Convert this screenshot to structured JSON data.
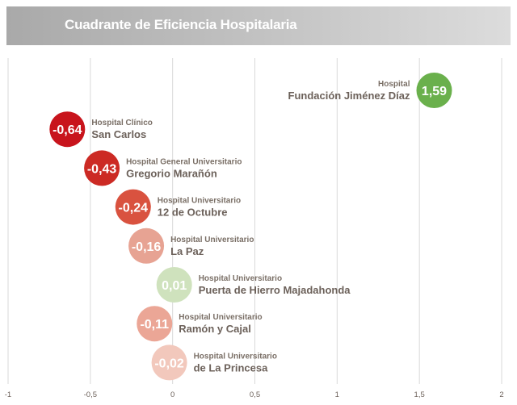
{
  "title": "Cuadrante de Eficiencia Hospitalaria",
  "chart_data": {
    "type": "scatter",
    "title": "Cuadrante de Eficiencia Hospitalaria",
    "xlim": [
      -1,
      2
    ],
    "x_ticks": [
      -1,
      -0.5,
      0,
      0.5,
      1,
      1.5,
      2
    ],
    "x_tick_labels": [
      "-1",
      "-0,5",
      "0",
      "0,5",
      "1",
      "1,5",
      "2"
    ],
    "grid": true,
    "points": [
      {
        "label_top": "Hospital",
        "label_bottom": "Fundación Jiménez Díaz",
        "x": 1.59,
        "value_label": "1,59",
        "color": "#6ab04c",
        "label_side": "left"
      },
      {
        "label_top": "Hospital Clínico",
        "label_bottom": "San Carlos",
        "x": -0.64,
        "value_label": "-0,64",
        "color": "#c8141c",
        "label_side": "right"
      },
      {
        "label_top": "Hospital General Universitario",
        "label_bottom": "Gregorio Marañón",
        "x": -0.43,
        "value_label": "-0,43",
        "color": "#cc2a24",
        "label_side": "right"
      },
      {
        "label_top": "Hospital Universitario",
        "label_bottom": "12 de Octubre",
        "x": -0.24,
        "value_label": "-0,24",
        "color": "#d9523f",
        "label_side": "right"
      },
      {
        "label_top": "Hospital Universitario",
        "label_bottom": "La Paz",
        "x": -0.16,
        "value_label": "-0,16",
        "color": "#e7a393",
        "label_side": "right"
      },
      {
        "label_top": "Hospital Universitario",
        "label_bottom": "Puerta de Hierro Majadahonda",
        "x": 0.01,
        "value_label": "0,01",
        "color": "#cfe2bd",
        "label_side": "right"
      },
      {
        "label_top": "Hospital Universitario",
        "label_bottom": "Ramón y Cajal",
        "x": -0.11,
        "value_label": "-0,11",
        "color": "#eba696",
        "label_side": "right"
      },
      {
        "label_top": "Hospital Universitario",
        "label_bottom": "de La Princesa",
        "x": -0.02,
        "value_label": "-0,02",
        "color": "#f2c8bc",
        "label_side": "right"
      }
    ]
  }
}
